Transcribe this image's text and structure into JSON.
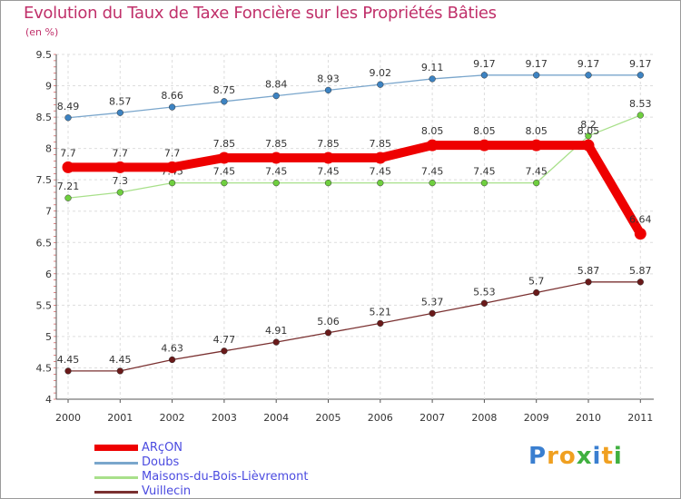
{
  "chart_data": {
    "type": "line",
    "title": "Evolution du Taux de Taxe Foncière sur les Propriétés Bâties",
    "subtitle": "(en %)",
    "xlabel": "",
    "ylabel": "",
    "ylim": [
      4,
      9.5
    ],
    "yticks": [
      "4",
      "4.5",
      "5",
      "5.5",
      "6",
      "6.5",
      "7",
      "7.5",
      "8",
      "8.5",
      "9",
      "9.5"
    ],
    "categories": [
      "2000",
      "2001",
      "2002",
      "2003",
      "2004",
      "2005",
      "2006",
      "2007",
      "2008",
      "2009",
      "2010",
      "2011"
    ],
    "series": [
      {
        "name": "Doubs",
        "color": "#7aa6cc",
        "marker": "#3d83c2",
        "values": [
          8.49,
          8.57,
          8.66,
          8.75,
          8.84,
          8.93,
          9.02,
          9.11,
          9.17,
          9.17,
          9.17,
          9.17
        ],
        "labels": [
          "8.49",
          "8.57",
          "8.66",
          "8.75",
          "8.84",
          "8.93",
          "9.02",
          "9.11",
          "9.17",
          "9.17",
          "9.17",
          "9.17"
        ]
      },
      {
        "name": "Maisons-du-Bois-Lièvremont",
        "color": "#a8e08a",
        "marker": "#6fcf3f",
        "values": [
          7.21,
          7.3,
          7.45,
          7.45,
          7.45,
          7.45,
          7.45,
          7.45,
          7.45,
          7.45,
          8.2,
          8.53
        ],
        "labels": [
          "7.21",
          "7.3",
          "7.45",
          "7.45",
          "7.45",
          "7.45",
          "7.45",
          "7.45",
          "7.45",
          "7.45",
          "8.2",
          "8.53"
        ]
      },
      {
        "name": "Vuillecin",
        "color": "#7a3030",
        "marker": "#6a1a1a",
        "values": [
          4.45,
          4.45,
          4.63,
          4.77,
          4.91,
          5.06,
          5.21,
          5.37,
          5.53,
          5.7,
          5.87,
          5.87
        ],
        "labels": [
          "4.45",
          "4.45",
          "4.63",
          "4.77",
          "4.91",
          "5.06",
          "5.21",
          "5.37",
          "5.53",
          "5.7",
          "5.87",
          "5.87"
        ]
      },
      {
        "name": "ARçON",
        "color": "#ee0000",
        "marker": "#ee0000",
        "values": [
          7.7,
          7.7,
          7.7,
          7.85,
          7.85,
          7.85,
          7.85,
          8.05,
          8.05,
          8.05,
          8.05,
          6.64
        ],
        "labels": [
          "7.7",
          "7.7",
          "7.7",
          "7.85",
          "7.85",
          "7.85",
          "7.85",
          "8.05",
          "8.05",
          "8.05",
          "8.05",
          "6.64"
        ]
      }
    ],
    "legend": [
      "ARçON",
      "Doubs",
      "Maisons-du-Bois-Lièvremont",
      "Vuillecin"
    ],
    "legend_position": "bottom-left"
  },
  "logo": {
    "letters": [
      "P",
      "r",
      "o",
      "x",
      "i",
      "t",
      "i"
    ],
    "colors": [
      "#3a7fd0",
      "#f0a020",
      "#f0a020",
      "#40b040",
      "#3a7fd0",
      "#f0a020",
      "#40b040"
    ]
  }
}
